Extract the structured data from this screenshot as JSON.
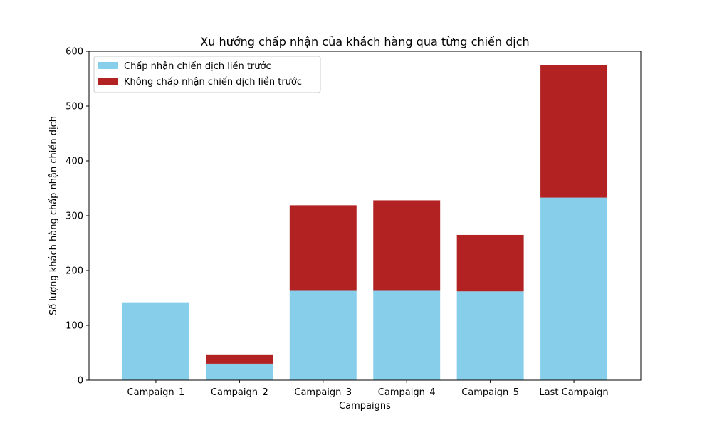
{
  "chart_data": {
    "type": "bar",
    "stacked": true,
    "title": "Xu hướng chấp nhận của khách hàng qua từng chiến dịch",
    "xlabel": "Campaigns",
    "ylabel": "Số lượng khách hàng chấp nhận chiến dịch",
    "categories": [
      "Campaign_1",
      "Campaign_2",
      "Campaign_3",
      "Campaign_4",
      "Campaign_5",
      "Last Campaign"
    ],
    "series": [
      {
        "name": "Chấp nhận chiến dịch liền trước",
        "color": "#87ceeb",
        "values": [
          142,
          30,
          163,
          163,
          162,
          333
        ]
      },
      {
        "name": "Không chấp nhận chiến dịch liền trước",
        "color": "#b22222",
        "values": [
          0,
          17,
          156,
          165,
          103,
          242
        ]
      }
    ],
    "ylim": [
      0,
      600
    ],
    "yticks": [
      0,
      100,
      200,
      300,
      400,
      500,
      600
    ],
    "grid": false,
    "legend_position": "top-left"
  }
}
